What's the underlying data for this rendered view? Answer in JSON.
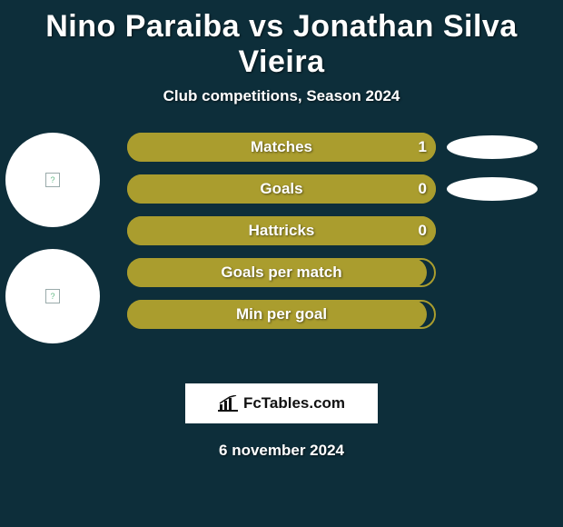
{
  "title": "Nino Paraiba vs Jonathan Silva Vieira",
  "subtitle": "Club competitions, Season 2024",
  "date": "6 november 2024",
  "brand": "FcTables.com",
  "colors": {
    "bar": "#aa9d2e",
    "bg": "#0d2e3a"
  },
  "bars": [
    {
      "label": "Matches",
      "value": "1",
      "fill_pct": 100,
      "show_value": true,
      "show_ellipse": true
    },
    {
      "label": "Goals",
      "value": "0",
      "fill_pct": 100,
      "show_value": true,
      "show_ellipse": true
    },
    {
      "label": "Hattricks",
      "value": "0",
      "fill_pct": 100,
      "show_value": true,
      "show_ellipse": false
    },
    {
      "label": "Goals per match",
      "value": "",
      "fill_pct": 97,
      "show_value": false,
      "show_ellipse": false
    },
    {
      "label": "Min per goal",
      "value": "",
      "fill_pct": 97,
      "show_value": false,
      "show_ellipse": false
    }
  ]
}
